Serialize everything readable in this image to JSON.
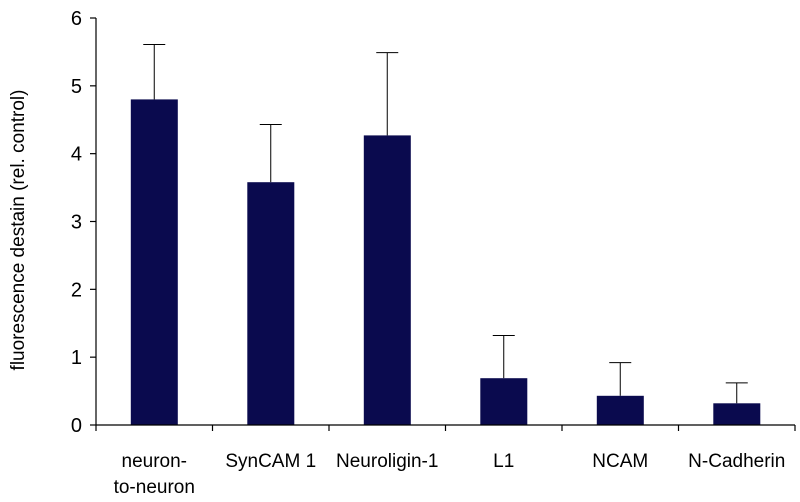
{
  "chart_data": {
    "type": "bar",
    "title": "",
    "xlabel": "",
    "ylabel": "fluorescence destain (rel. control)",
    "ylim": [
      0,
      6
    ],
    "yticks": [
      0,
      1,
      2,
      3,
      4,
      5,
      6
    ],
    "grid": false,
    "categories": [
      [
        "neuron-",
        "to-neuron"
      ],
      [
        "SynCAM 1"
      ],
      [
        "Neuroligin-1"
      ],
      [
        "L1"
      ],
      [
        "NCAM"
      ],
      [
        "N-Cadherin"
      ]
    ],
    "values": [
      4.8,
      3.58,
      4.27,
      0.69,
      0.43,
      0.32
    ],
    "error_upper": [
      0.81,
      0.85,
      1.22,
      0.63,
      0.49,
      0.3
    ],
    "bar_color": "#0a0a4e",
    "axis_color": "#000000"
  }
}
